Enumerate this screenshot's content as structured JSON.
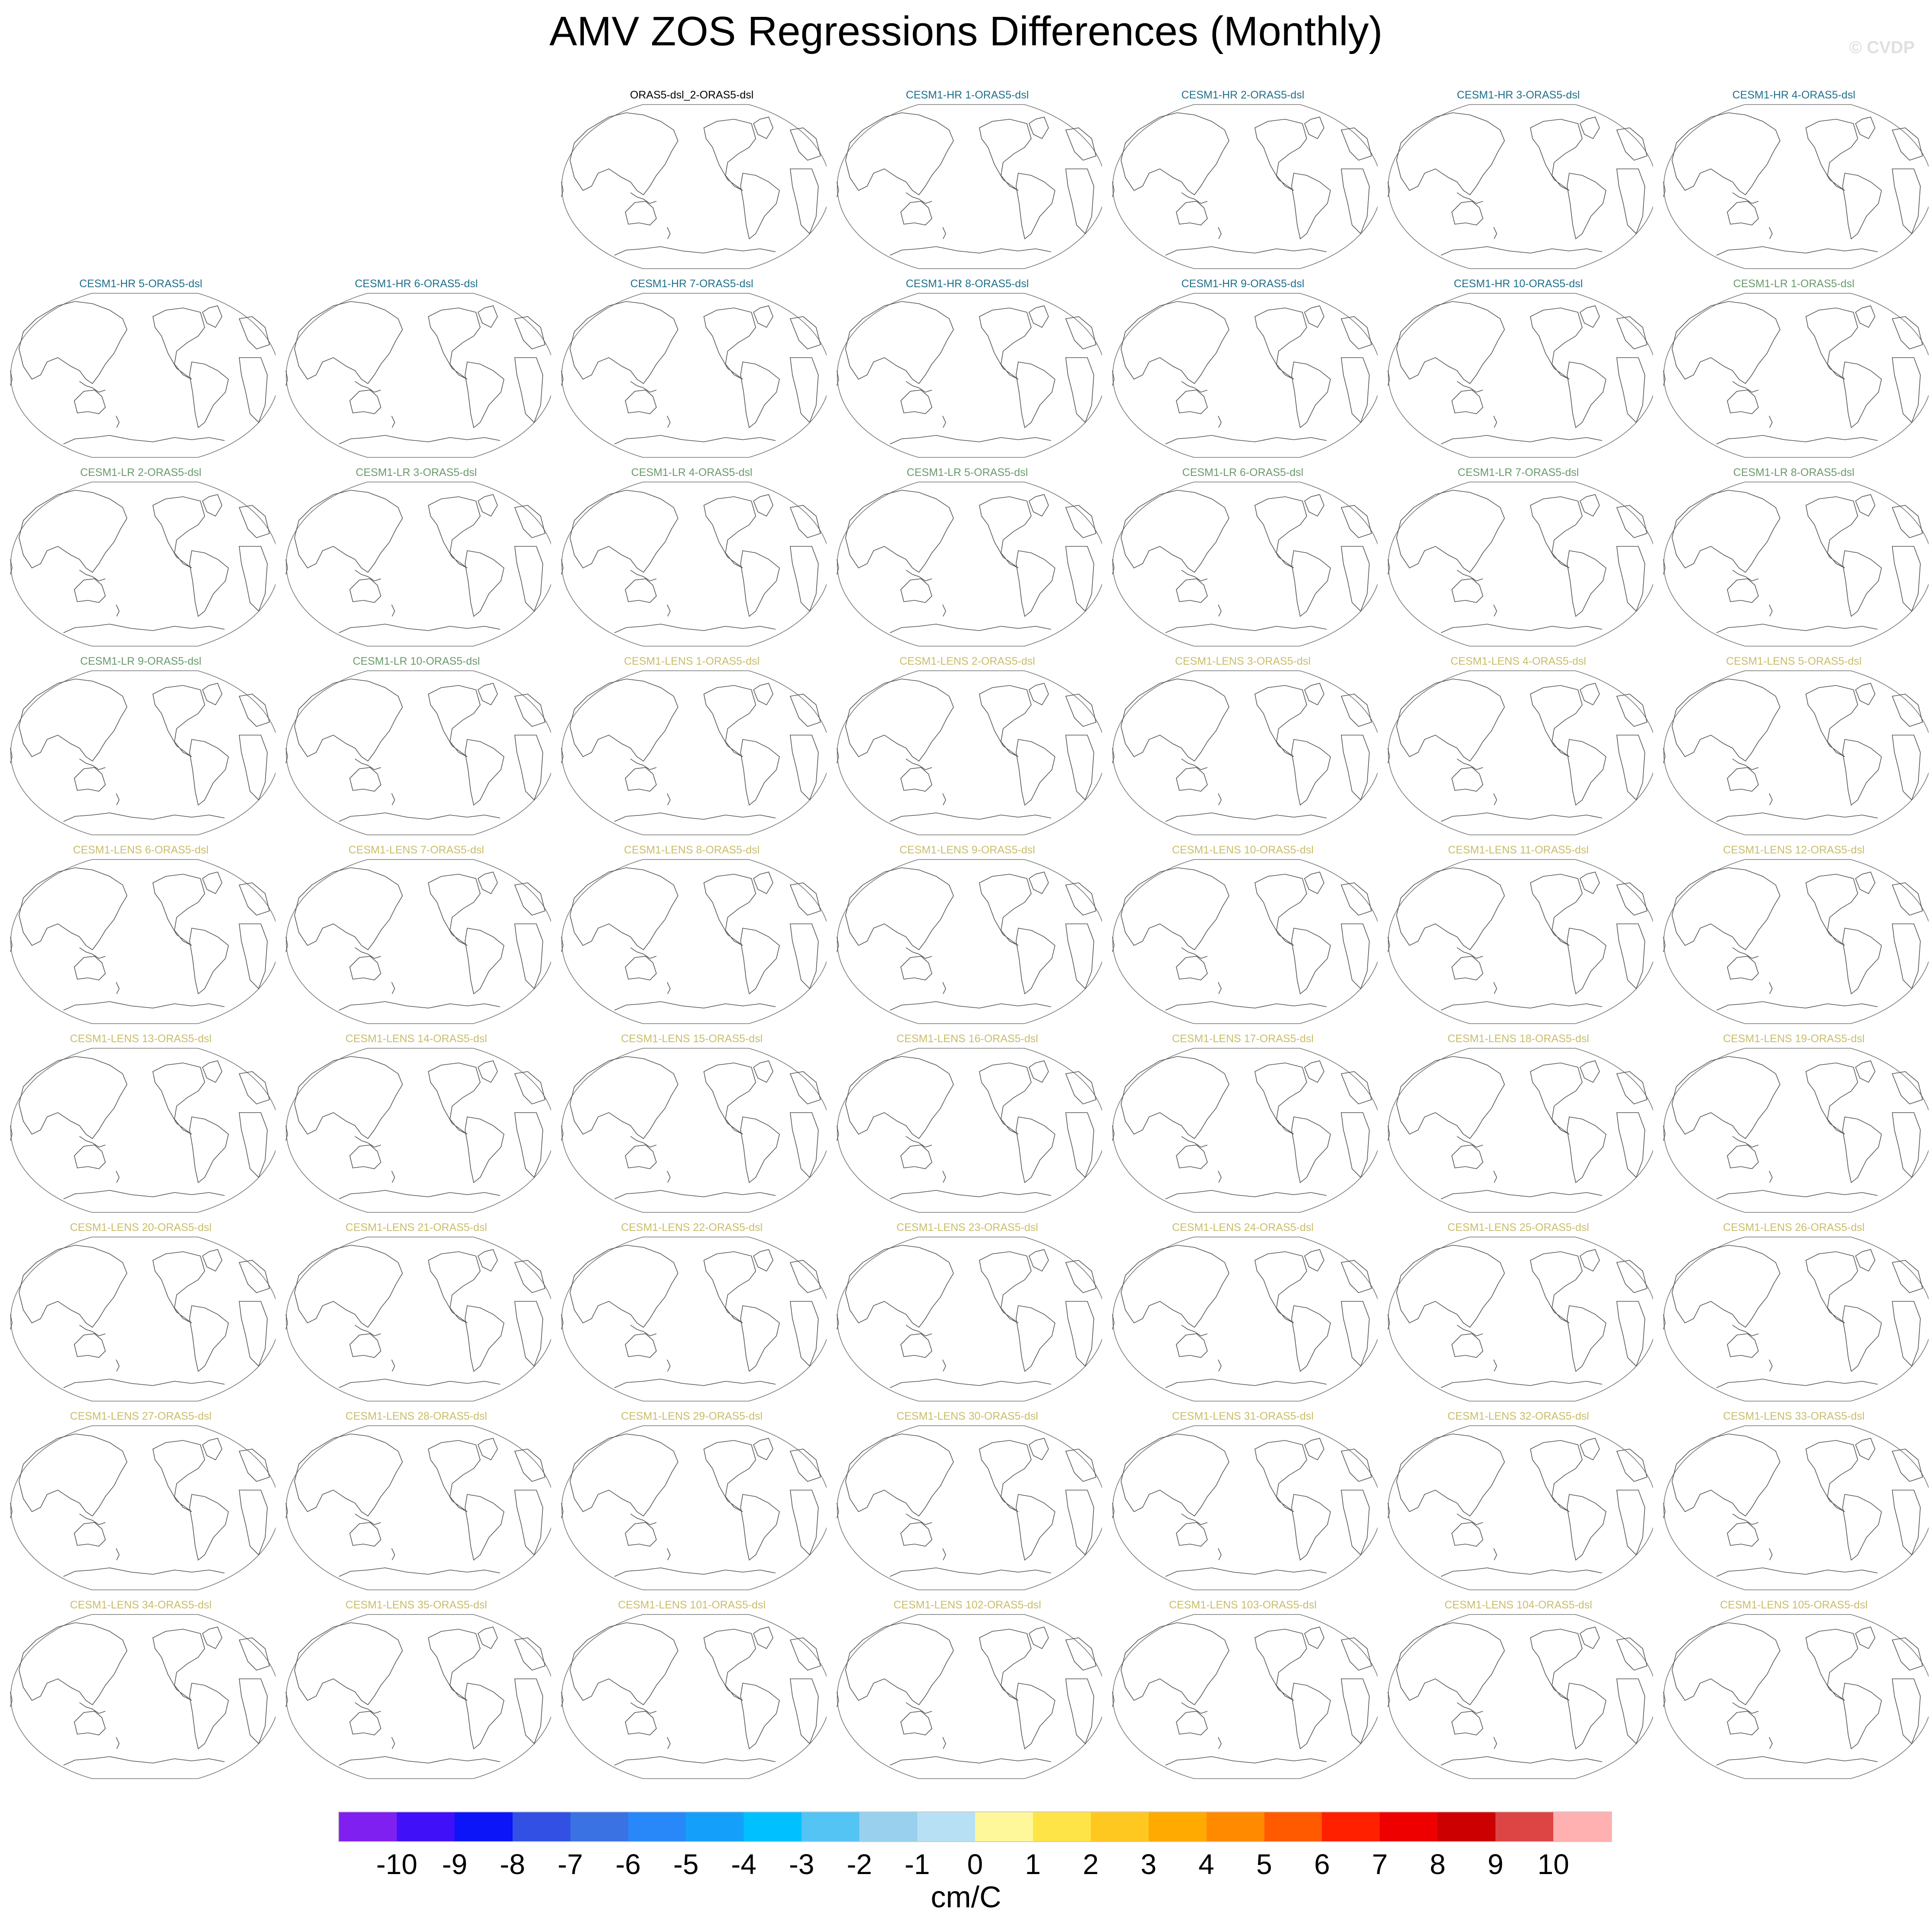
{
  "title": "AMV ZOS Regressions Differences (Monthly)",
  "watermark": "© CVDP",
  "group_colors": {
    "obs": "#000000",
    "hr": "#1f6f8b",
    "lr": "#6a9a6c",
    "lens": "#c9bd6a"
  },
  "panels": [
    {
      "label": "ORAS5-dsl_2-ORAS5-dsl",
      "group": "obs"
    },
    {
      "label": "CESM1-HR 1-ORAS5-dsl",
      "group": "hr"
    },
    {
      "label": "CESM1-HR 2-ORAS5-dsl",
      "group": "hr"
    },
    {
      "label": "CESM1-HR 3-ORAS5-dsl",
      "group": "hr"
    },
    {
      "label": "CESM1-HR 4-ORAS5-dsl",
      "group": "hr"
    },
    {
      "label": "CESM1-HR 5-ORAS5-dsl",
      "group": "hr"
    },
    {
      "label": "CESM1-HR 6-ORAS5-dsl",
      "group": "hr"
    },
    {
      "label": "CESM1-HR 7-ORAS5-dsl",
      "group": "hr"
    },
    {
      "label": "CESM1-HR 8-ORAS5-dsl",
      "group": "hr"
    },
    {
      "label": "CESM1-HR 9-ORAS5-dsl",
      "group": "hr"
    },
    {
      "label": "CESM1-HR 10-ORAS5-dsl",
      "group": "hr"
    },
    {
      "label": "CESM1-LR 1-ORAS5-dsl",
      "group": "lr"
    },
    {
      "label": "CESM1-LR 2-ORAS5-dsl",
      "group": "lr"
    },
    {
      "label": "CESM1-LR 3-ORAS5-dsl",
      "group": "lr"
    },
    {
      "label": "CESM1-LR 4-ORAS5-dsl",
      "group": "lr"
    },
    {
      "label": "CESM1-LR 5-ORAS5-dsl",
      "group": "lr"
    },
    {
      "label": "CESM1-LR 6-ORAS5-dsl",
      "group": "lr"
    },
    {
      "label": "CESM1-LR 7-ORAS5-dsl",
      "group": "lr"
    },
    {
      "label": "CESM1-LR 8-ORAS5-dsl",
      "group": "lr"
    },
    {
      "label": "CESM1-LR 9-ORAS5-dsl",
      "group": "lr"
    },
    {
      "label": "CESM1-LR 10-ORAS5-dsl",
      "group": "lr"
    },
    {
      "label": "CESM1-LENS 1-ORAS5-dsl",
      "group": "lens"
    },
    {
      "label": "CESM1-LENS 2-ORAS5-dsl",
      "group": "lens"
    },
    {
      "label": "CESM1-LENS 3-ORAS5-dsl",
      "group": "lens"
    },
    {
      "label": "CESM1-LENS 4-ORAS5-dsl",
      "group": "lens"
    },
    {
      "label": "CESM1-LENS 5-ORAS5-dsl",
      "group": "lens"
    },
    {
      "label": "CESM1-LENS 6-ORAS5-dsl",
      "group": "lens"
    },
    {
      "label": "CESM1-LENS 7-ORAS5-dsl",
      "group": "lens"
    },
    {
      "label": "CESM1-LENS 8-ORAS5-dsl",
      "group": "lens"
    },
    {
      "label": "CESM1-LENS 9-ORAS5-dsl",
      "group": "lens"
    },
    {
      "label": "CESM1-LENS 10-ORAS5-dsl",
      "group": "lens"
    },
    {
      "label": "CESM1-LENS 11-ORAS5-dsl",
      "group": "lens"
    },
    {
      "label": "CESM1-LENS 12-ORAS5-dsl",
      "group": "lens"
    },
    {
      "label": "CESM1-LENS 13-ORAS5-dsl",
      "group": "lens"
    },
    {
      "label": "CESM1-LENS 14-ORAS5-dsl",
      "group": "lens"
    },
    {
      "label": "CESM1-LENS 15-ORAS5-dsl",
      "group": "lens"
    },
    {
      "label": "CESM1-LENS 16-ORAS5-dsl",
      "group": "lens"
    },
    {
      "label": "CESM1-LENS 17-ORAS5-dsl",
      "group": "lens"
    },
    {
      "label": "CESM1-LENS 18-ORAS5-dsl",
      "group": "lens"
    },
    {
      "label": "CESM1-LENS 19-ORAS5-dsl",
      "group": "lens"
    },
    {
      "label": "CESM1-LENS 20-ORAS5-dsl",
      "group": "lens"
    },
    {
      "label": "CESM1-LENS 21-ORAS5-dsl",
      "group": "lens"
    },
    {
      "label": "CESM1-LENS 22-ORAS5-dsl",
      "group": "lens"
    },
    {
      "label": "CESM1-LENS 23-ORAS5-dsl",
      "group": "lens"
    },
    {
      "label": "CESM1-LENS 24-ORAS5-dsl",
      "group": "lens"
    },
    {
      "label": "CESM1-LENS 25-ORAS5-dsl",
      "group": "lens"
    },
    {
      "label": "CESM1-LENS 26-ORAS5-dsl",
      "group": "lens"
    },
    {
      "label": "CESM1-LENS 27-ORAS5-dsl",
      "group": "lens"
    },
    {
      "label": "CESM1-LENS 28-ORAS5-dsl",
      "group": "lens"
    },
    {
      "label": "CESM1-LENS 29-ORAS5-dsl",
      "group": "lens"
    },
    {
      "label": "CESM1-LENS 30-ORAS5-dsl",
      "group": "lens"
    },
    {
      "label": "CESM1-LENS 31-ORAS5-dsl",
      "group": "lens"
    },
    {
      "label": "CESM1-LENS 32-ORAS5-dsl",
      "group": "lens"
    },
    {
      "label": "CESM1-LENS 33-ORAS5-dsl",
      "group": "lens"
    },
    {
      "label": "CESM1-LENS 34-ORAS5-dsl",
      "group": "lens"
    },
    {
      "label": "CESM1-LENS 35-ORAS5-dsl",
      "group": "lens"
    },
    {
      "label": "CESM1-LENS 101-ORAS5-dsl",
      "group": "lens"
    },
    {
      "label": "CESM1-LENS 102-ORAS5-dsl",
      "group": "lens"
    },
    {
      "label": "CESM1-LENS 103-ORAS5-dsl",
      "group": "lens"
    },
    {
      "label": "CESM1-LENS 104-ORAS5-dsl",
      "group": "lens"
    },
    {
      "label": "CESM1-LENS 105-ORAS5-dsl",
      "group": "lens"
    }
  ],
  "chart_data": {
    "type": "map-panels",
    "projection": "pacific-centered global",
    "field_values": "no shaded values visible (all panels blank)",
    "colorbar": {
      "ticks": [
        "-10",
        "-9",
        "-8",
        "-7",
        "-6",
        "-5",
        "-4",
        "-3",
        "-2",
        "-1",
        "0",
        "1",
        "2",
        "3",
        "4",
        "5",
        "6",
        "7",
        "8",
        "9",
        "10"
      ],
      "colors": [
        "#8020f0",
        "#4010f8",
        "#0c14f8",
        "#3250e4",
        "#3a72e4",
        "#2888fa",
        "#14a0fa",
        "#00c0ff",
        "#54c4f4",
        "#98d0ee",
        "#b8e0f4",
        "#fff89a",
        "#ffe448",
        "#ffc820",
        "#ffaa00",
        "#ff8a00",
        "#ff5a00",
        "#ff2000",
        "#ee0000",
        "#cc0000",
        "#dd4444",
        "#ffb0b0"
      ],
      "units": "cm/C"
    }
  }
}
